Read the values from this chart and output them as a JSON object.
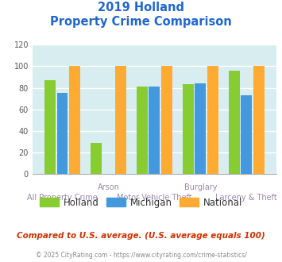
{
  "title_line1": "2019 Holland",
  "title_line2": "Property Crime Comparison",
  "categories": [
    "All Property Crime",
    "Arson",
    "Motor Vehicle Theft",
    "Burglary",
    "Larceny & Theft"
  ],
  "x_labels_top": [
    "",
    "Arson",
    "",
    "Burglary",
    ""
  ],
  "x_labels_bottom": [
    "All Property Crime",
    "",
    "Motor Vehicle Theft",
    "",
    "Larceny & Theft"
  ],
  "holland": [
    87,
    29,
    81,
    83,
    96
  ],
  "michigan": [
    75,
    0,
    81,
    84,
    73
  ],
  "national": [
    100,
    100,
    100,
    100,
    100
  ],
  "holland_color": "#88cc33",
  "michigan_color": "#4499dd",
  "national_color": "#ffaa33",
  "ylim": [
    0,
    120
  ],
  "yticks": [
    0,
    20,
    40,
    60,
    80,
    100,
    120
  ],
  "background_color": "#d8edf0",
  "grid_color": "#ffffff",
  "note": "Compared to U.S. average. (U.S. average equals 100)",
  "footnote": "© 2025 CityRating.com - https://www.cityrating.com/crime-statistics/",
  "title_color": "#2266cc",
  "xlabel_color": "#9988aa",
  "note_color": "#cc3300",
  "footnote_color": "#888888",
  "legend_text_color": "#333333",
  "legend_labels": [
    "Holland",
    "Michigan",
    "National"
  ]
}
